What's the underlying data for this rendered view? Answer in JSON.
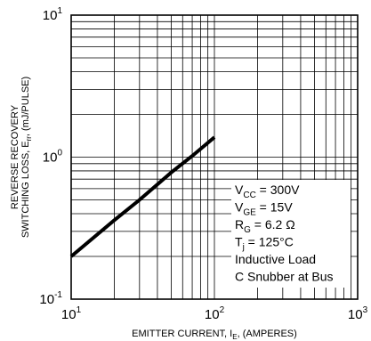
{
  "chart_data": {
    "type": "line",
    "scale": {
      "x": "log",
      "y": "log"
    },
    "xlim": [
      10,
      1000
    ],
    "ylim": [
      0.1,
      10
    ],
    "grid": true,
    "x_ticks": [
      {
        "base": "10",
        "exp": "1"
      },
      {
        "base": "10",
        "exp": "2"
      },
      {
        "base": "10",
        "exp": "3"
      }
    ],
    "y_ticks": [
      {
        "base": "10",
        "exp": "1"
      },
      {
        "base": "10",
        "exp": "0"
      },
      {
        "base": "10",
        "exp": "-1"
      }
    ],
    "xlabel": {
      "main": "EMITTER CURRENT, I",
      "sub": "E",
      "tail": ", (AMPERES)"
    },
    "ylabel": {
      "line1": "REVERSE RECOVERY",
      "line2_main": "SWITCHING LOSS, E",
      "line2_sub": "rr",
      "line2_tail": ", (mJ/PULSE)"
    },
    "series": [
      {
        "x": [
          10,
          20,
          30,
          50,
          70,
          100
        ],
        "y": [
          0.2,
          0.36,
          0.5,
          0.78,
          1.02,
          1.38
        ]
      }
    ],
    "annotations": [
      {
        "main": "V",
        "sub": "CC",
        "tail": " = 300V"
      },
      {
        "main": "V",
        "sub": "GE",
        "tail": " = 15V"
      },
      {
        "main": "R",
        "sub": "G",
        "tail": " = 6.2 Ω"
      },
      {
        "main": "T",
        "sub": "j",
        "tail": " = 125°C"
      },
      {
        "main": "Inductive Load",
        "sub": "",
        "tail": ""
      },
      {
        "main": "C Snubber at Bus",
        "sub": "",
        "tail": ""
      }
    ]
  }
}
